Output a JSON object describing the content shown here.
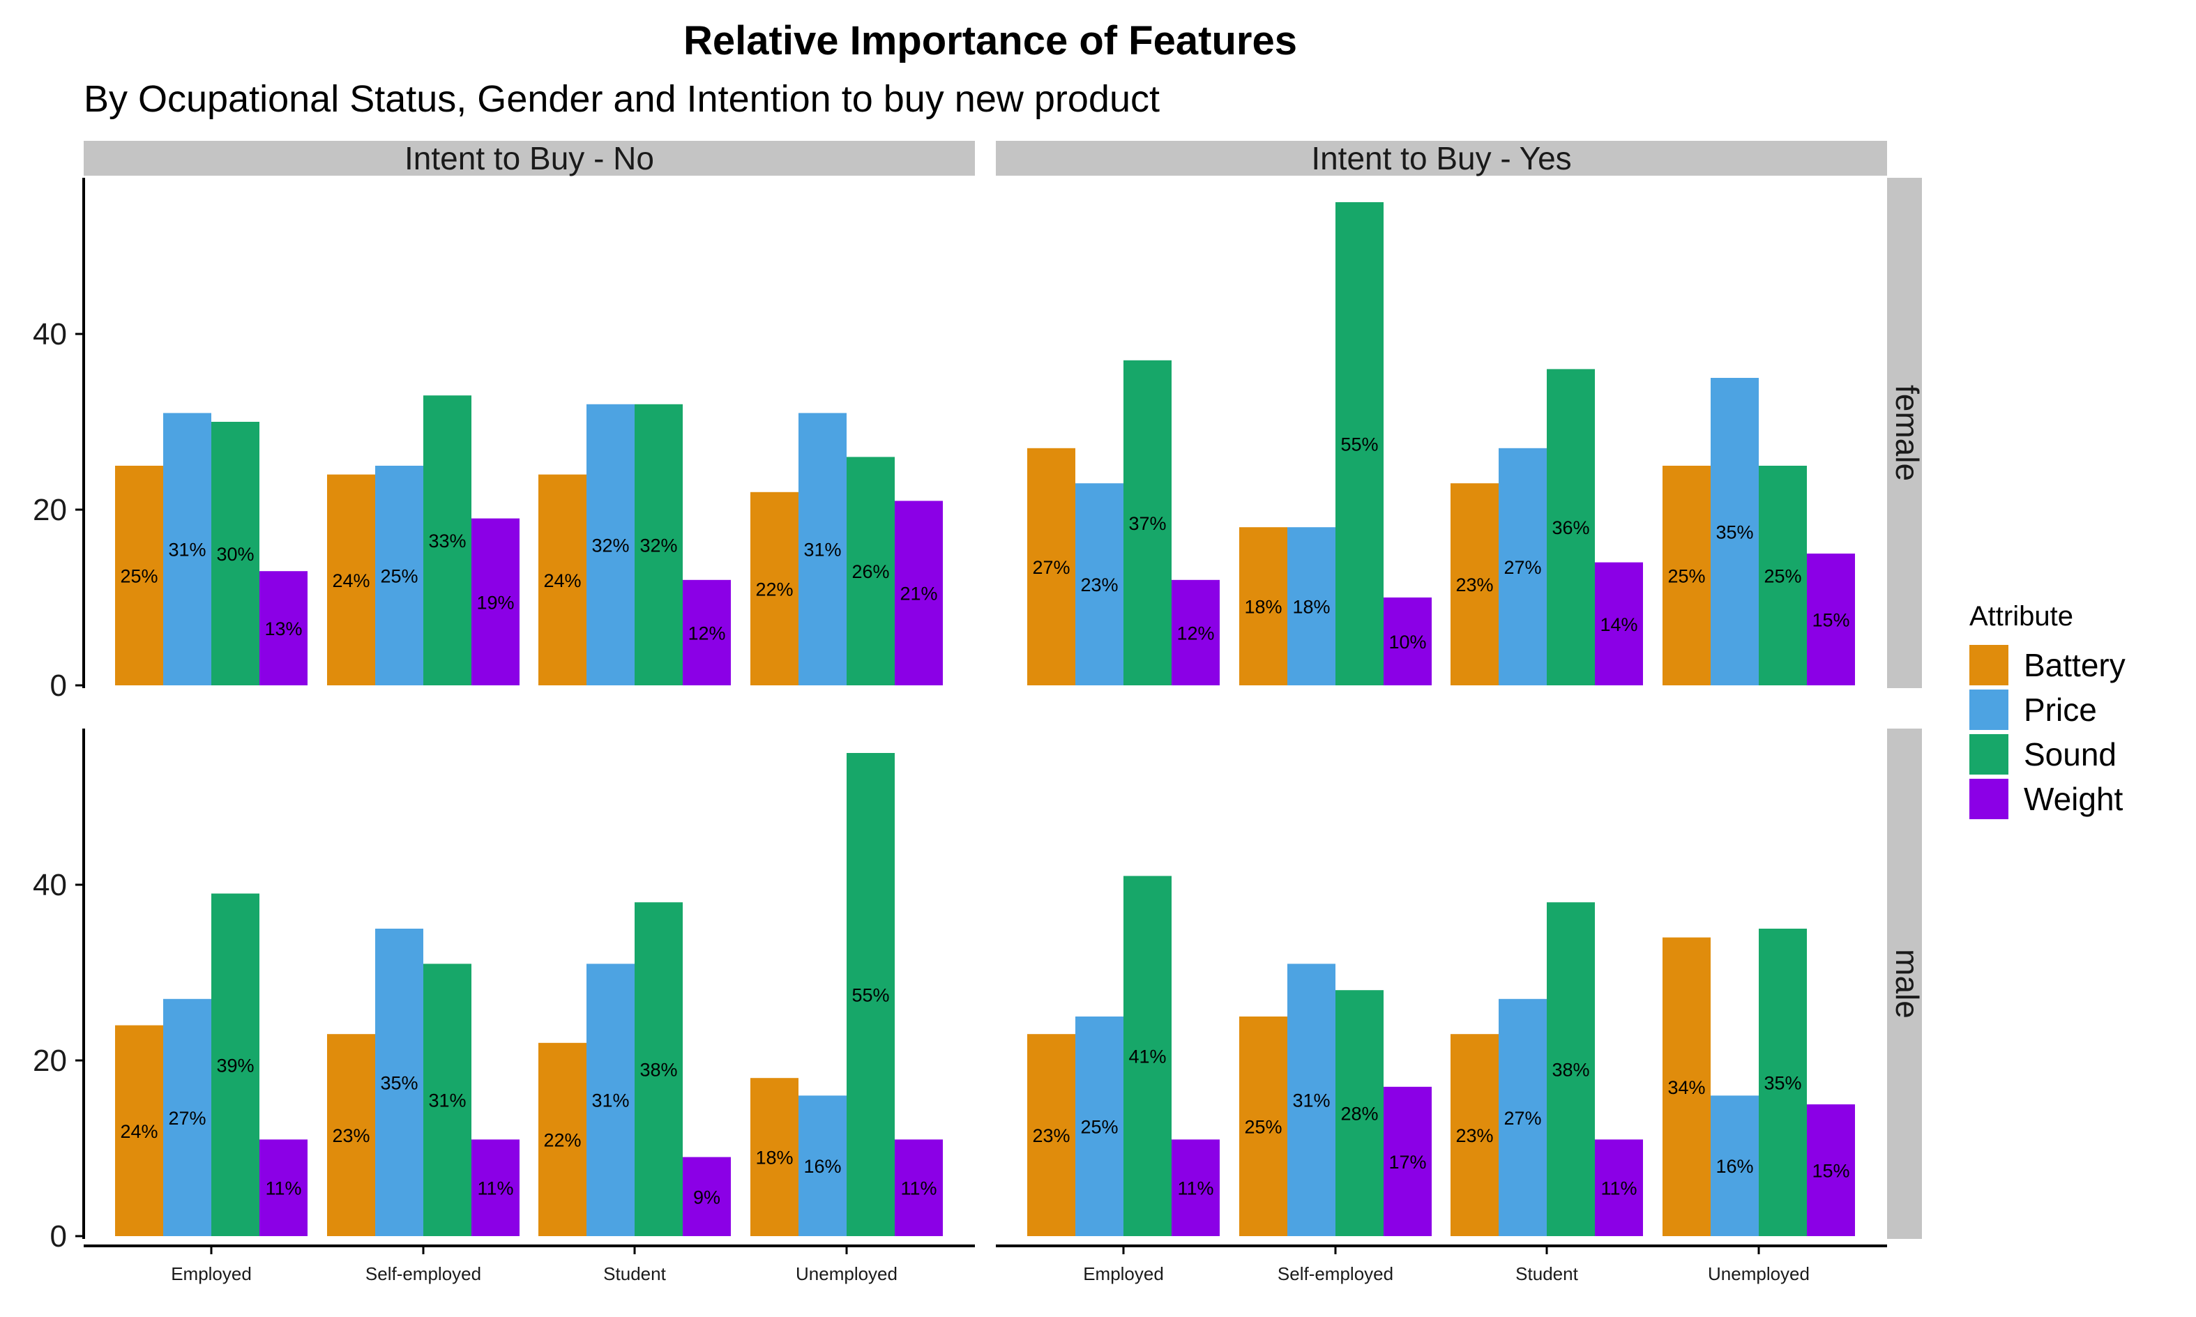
{
  "chart_data": {
    "type": "bar",
    "title": "Relative Importance of Features",
    "subtitle": "By Ocupational Status, Gender and Intention to buy new product",
    "categories": [
      "Employed",
      "Self-employed",
      "Student",
      "Unemployed"
    ],
    "facet_columns": [
      "Intent to Buy - No",
      "Intent to Buy - Yes"
    ],
    "facet_rows": [
      "female",
      "male"
    ],
    "ylim": [
      0,
      57
    ],
    "yticks": [
      "0",
      "20",
      "40"
    ],
    "legend": {
      "title": "Attribute",
      "position": "right",
      "items": [
        {
          "name": "Battery",
          "color": "#E08C0C"
        },
        {
          "name": "Price",
          "color": "#4DA3E2"
        },
        {
          "name": "Sound",
          "color": "#17A769"
        },
        {
          "name": "Weight",
          "color": "#8B00E6"
        }
      ]
    },
    "panels": [
      {
        "row": "female",
        "col": "Intent to Buy - No",
        "values": [
          [
            25,
            31,
            30,
            13
          ],
          [
            24,
            25,
            33,
            19
          ],
          [
            24,
            32,
            32,
            12
          ],
          [
            22,
            31,
            26,
            21
          ]
        ],
        "labels": [
          [
            "25%",
            "31%",
            "30%",
            "13%"
          ],
          [
            "24%",
            "25%",
            "33%",
            "19%"
          ],
          [
            "24%",
            "32%",
            "32%",
            "12%"
          ],
          [
            "22%",
            "31%",
            "26%",
            "21%"
          ]
        ]
      },
      {
        "row": "female",
        "col": "Intent to Buy - Yes",
        "values": [
          [
            27,
            23,
            37,
            12
          ],
          [
            18,
            18,
            55,
            10
          ],
          [
            23,
            27,
            36,
            14
          ],
          [
            25,
            35,
            25,
            15
          ]
        ],
        "labels": [
          [
            "27%",
            "23%",
            "37%",
            "12%"
          ],
          [
            "18%",
            "18%",
            "55%",
            "10%"
          ],
          [
            "23%",
            "27%",
            "36%",
            "14%"
          ],
          [
            "25%",
            "35%",
            "25%",
            "15%"
          ]
        ]
      },
      {
        "row": "male",
        "col": "Intent to Buy - No",
        "values": [
          [
            24,
            27,
            39,
            11
          ],
          [
            23,
            35,
            31,
            11
          ],
          [
            22,
            31,
            38,
            9
          ],
          [
            18,
            16,
            55,
            11
          ]
        ],
        "labels": [
          [
            "24%",
            "27%",
            "39%",
            "11%"
          ],
          [
            "23%",
            "35%",
            "31%",
            "11%"
          ],
          [
            "22%",
            "31%",
            "38%",
            "9%"
          ],
          [
            "18%",
            "16%",
            "55%",
            "11%"
          ]
        ]
      },
      {
        "row": "male",
        "col": "Intent to Buy - Yes",
        "values": [
          [
            23,
            25,
            41,
            11
          ],
          [
            25,
            31,
            28,
            17
          ],
          [
            23,
            27,
            38,
            11
          ],
          [
            34,
            16,
            35,
            15
          ]
        ],
        "labels": [
          [
            "23%",
            "25%",
            "41%",
            "11%"
          ],
          [
            "25%",
            "31%",
            "28%",
            "17%"
          ],
          [
            "23%",
            "27%",
            "38%",
            "11%"
          ],
          [
            "34%",
            "16%",
            "35%",
            "15%"
          ]
        ]
      }
    ]
  }
}
